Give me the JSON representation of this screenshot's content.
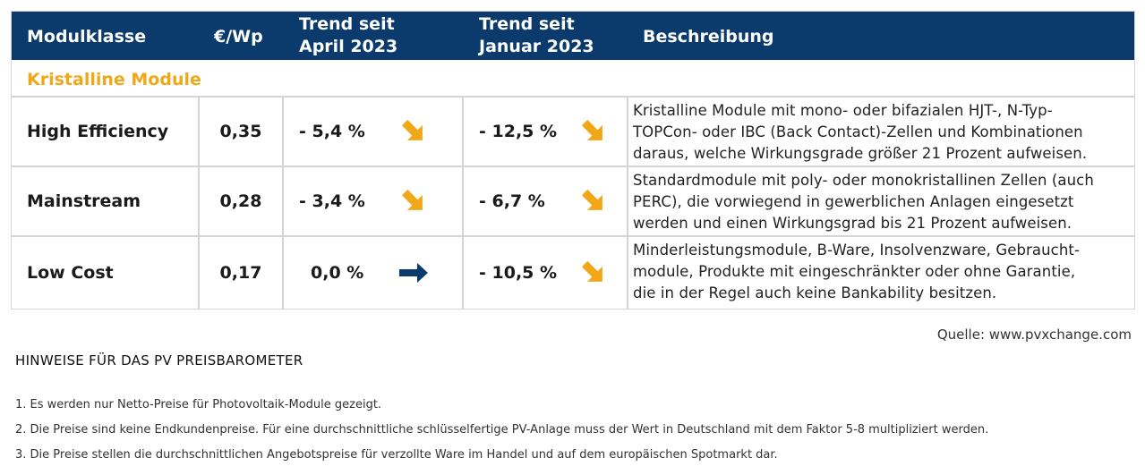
{
  "header": {
    "col1": "Modulklasse",
    "col2": "€/Wp",
    "col3_line1": "Trend seit",
    "col3_line2": "April 2023",
    "col4_line1": "Trend seit",
    "col4_line2": "Januar 2023",
    "col5": "Beschreibung"
  },
  "section_title": "Kristalline Module",
  "colors": {
    "header_bg": "#0b3a6d",
    "accent": "#f0a818",
    "arrow_flat": "#0b3a6d"
  },
  "rows": [
    {
      "name": "High Efficiency",
      "price": "0,35",
      "trend_april": "- 5,4 %",
      "trend_april_icon": "arrow-down-right-icon",
      "trend_january": "- 12,5 %",
      "trend_january_icon": "arrow-down-right-icon",
      "desc_lines": [
        "Kristalline Module mit mono- oder bifazialen HJT-, N-Typ-",
        "TOPCon- oder IBC (Back Contact)-Zellen und Kombinationen",
        "daraus, welche Wirkungsgrade größer 21 Prozent aufweisen."
      ]
    },
    {
      "name": "Mainstream",
      "price": "0,28",
      "trend_april": "- 3,4 %",
      "trend_april_icon": "arrow-down-right-icon",
      "trend_january": "- 6,7 %",
      "trend_january_icon": "arrow-down-right-icon",
      "desc_lines": [
        "Standardmodule mit poly- oder monokristallinen Zellen (auch",
        "PERC), die vorwiegend in gewerblichen Anlagen eingesetzt",
        "werden und einen Wirkungsgrad bis 21 Prozent aufweisen."
      ]
    },
    {
      "name": "Low Cost",
      "price": "0,17",
      "trend_april": "0,0 %",
      "trend_april_icon": "arrow-right-icon",
      "trend_january": "- 10,5 %",
      "trend_january_icon": "arrow-down-right-icon",
      "desc_lines": [
        "Minderleistungsmodule, B-Ware, Insolvenzware, Gebraucht-",
        "module, Produkte mit eingeschränkter oder ohne Garantie,",
        "die in der Regel auch keine Bankability besitzen."
      ]
    }
  ],
  "source": "Quelle: www.pvxchange.com",
  "hints_title": "HINWEISE FÜR DAS PV PREISBAROMETER",
  "notes": [
    "1.  Es werden nur Netto-Preise für Photovoltaik-Module gezeigt.",
    "2. Die Preise sind keine Endkundenpreise. Für eine durchschnittliche schlüsselfertige PV-Anlage muss der Wert in Deutschland mit dem Faktor 5-8 multipliziert werden.",
    "3. Die Preise stellen die durchschnittlichen Angebotspreise für verzollte Ware im Handel und auf dem europäischen Spotmarkt dar."
  ]
}
